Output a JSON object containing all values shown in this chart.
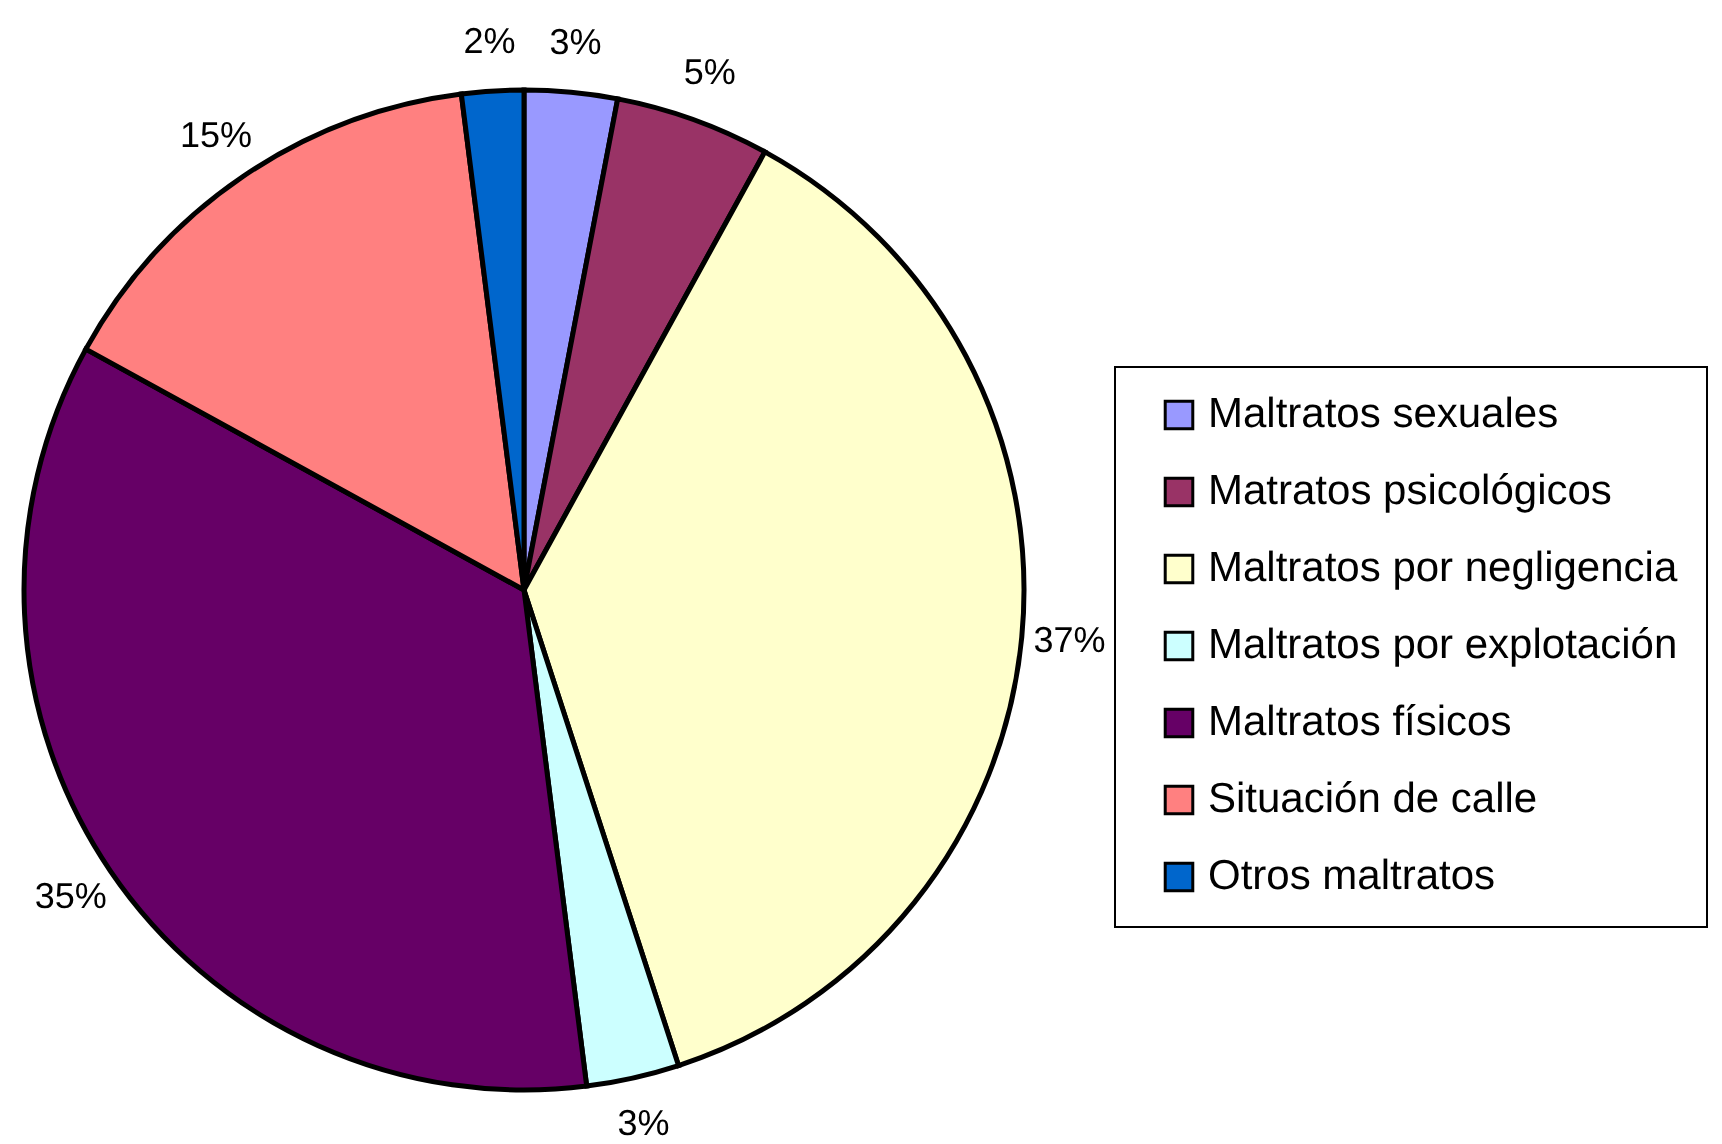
{
  "chart_data": {
    "type": "pie",
    "categories": [
      "Maltratos sexuales",
      "Matratos psicológicos",
      "Maltratos por negligencia",
      "Maltratos por explotación",
      "Maltratos físicos",
      "Situación de calle",
      "Otros maltratos"
    ],
    "values": [
      3,
      5,
      37,
      3,
      35,
      15,
      2
    ],
    "colors": [
      "#9999ff",
      "#993366",
      "#ffffcc",
      "#ccffff",
      "#660066",
      "#ff8080",
      "#0066cc"
    ],
    "value_labels": [
      "3%",
      "5%",
      "37%",
      "3%",
      "35%",
      "15%",
      "2%"
    ],
    "legend": "right"
  }
}
